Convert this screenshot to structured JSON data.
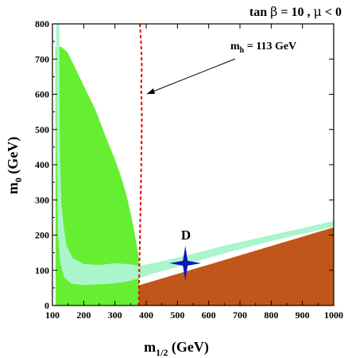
{
  "chart_data": {
    "type": "area",
    "title_parts": {
      "tan": "tan",
      "beta": "β",
      "eq1": " = 10 ,  ",
      "mu": "μ",
      "lt0": " < 0"
    },
    "xlabel_parts": {
      "main": "m",
      "sub": "1/2",
      "unit": " (GeV)"
    },
    "ylabel_parts": {
      "main": "m",
      "sub": "0",
      "unit": " (GeV)"
    },
    "xlim": [
      100,
      1000
    ],
    "ylim": [
      0,
      800
    ],
    "x_ticks": [
      "100",
      "200",
      "300",
      "400",
      "500",
      "600",
      "700",
      "800",
      "900",
      "1000"
    ],
    "y_ticks": [
      "0",
      "100",
      "200",
      "300",
      "400",
      "500",
      "600",
      "700",
      "800"
    ],
    "grid": false,
    "colors": {
      "stau_lsp": "#c0561a",
      "bsgamma": "#66ee33",
      "relic": "#aaf5cc",
      "mh_line": "#ee0000",
      "benchmark": "#0a1ab0"
    },
    "regions": [
      {
        "id": "stau-lsp-region",
        "points": [
          [
            190,
            0
          ],
          [
            1000,
            0
          ],
          [
            1000,
            222
          ],
          [
            520,
            95
          ],
          [
            380,
            58
          ],
          [
            300,
            40
          ],
          [
            240,
            22
          ],
          [
            190,
            0
          ]
        ]
      },
      {
        "id": "bsgamma-excluded-region",
        "points": [
          [
            110,
            0
          ],
          [
            110,
            735
          ],
          [
            128,
            735
          ],
          [
            148,
            720
          ],
          [
            178,
            665
          ],
          [
            208,
            610
          ],
          [
            238,
            555
          ],
          [
            268,
            485
          ],
          [
            298,
            420
          ],
          [
            318,
            370
          ],
          [
            338,
            310
          ],
          [
            352,
            255
          ],
          [
            362,
            210
          ],
          [
            370,
            170
          ],
          [
            375,
            140
          ],
          [
            377,
            100
          ],
          [
            377,
            0
          ]
        ]
      },
      {
        "id": "relic-density-strip-region",
        "points": [
          [
            112,
            800
          ],
          [
            122,
            800
          ],
          [
            122,
            650
          ],
          [
            124,
            450
          ],
          [
            128,
            300
          ],
          [
            135,
            230
          ],
          [
            145,
            170
          ],
          [
            165,
            135
          ],
          [
            200,
            118
          ],
          [
            250,
            115
          ],
          [
            300,
            120
          ],
          [
            350,
            117
          ],
          [
            380,
            113
          ],
          [
            420,
            120
          ],
          [
            520,
            140
          ],
          [
            650,
            170
          ],
          [
            800,
            200
          ],
          [
            1000,
            240
          ],
          [
            1000,
            224
          ],
          [
            800,
            183
          ],
          [
            650,
            148
          ],
          [
            520,
            115
          ],
          [
            420,
            90
          ],
          [
            380,
            78
          ],
          [
            340,
            68
          ],
          [
            300,
            63
          ],
          [
            250,
            60
          ],
          [
            200,
            58
          ],
          [
            160,
            62
          ],
          [
            138,
            80
          ],
          [
            125,
            120
          ],
          [
            118,
            200
          ],
          [
            115,
            350
          ],
          [
            112,
            600
          ],
          [
            112,
            800
          ]
        ]
      }
    ],
    "mh_curve": {
      "label_main": "m",
      "label_sub": "h",
      "label_rest": " = 113 GeV",
      "points": [
        [
          376,
          0
        ],
        [
          378,
          100
        ],
        [
          380,
          190
        ],
        [
          383,
          330
        ],
        [
          385,
          450
        ],
        [
          386,
          540
        ],
        [
          384,
          620
        ],
        [
          386,
          680
        ],
        [
          384,
          740
        ],
        [
          380,
          800
        ]
      ]
    },
    "benchmark": {
      "label": "D",
      "x": 525,
      "y": 120
    }
  }
}
